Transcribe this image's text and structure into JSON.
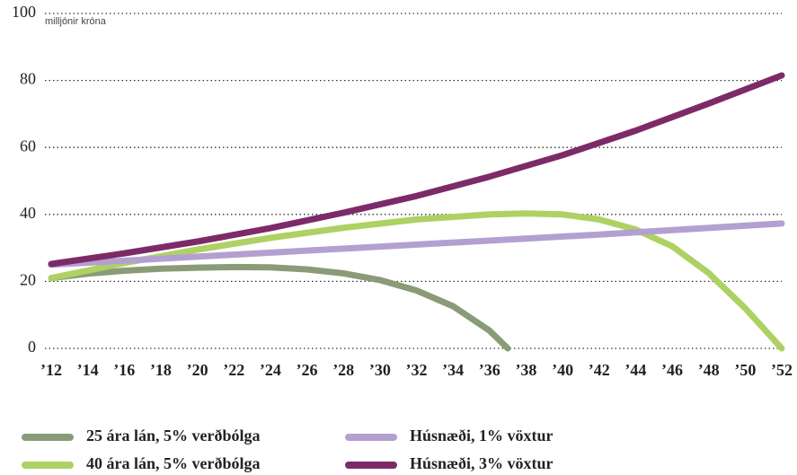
{
  "chart_data": {
    "type": "line",
    "y_label": "milljónir króna",
    "xlim": [
      12,
      52
    ],
    "xticks": [
      {
        "value": 12,
        "label": "’12"
      },
      {
        "value": 14,
        "label": "’14"
      },
      {
        "value": 16,
        "label": "’16"
      },
      {
        "value": 18,
        "label": "’18"
      },
      {
        "value": 20,
        "label": "’20"
      },
      {
        "value": 22,
        "label": "’22"
      },
      {
        "value": 24,
        "label": "’24"
      },
      {
        "value": 26,
        "label": "’26"
      },
      {
        "value": 28,
        "label": "’28"
      },
      {
        "value": 30,
        "label": "’30"
      },
      {
        "value": 32,
        "label": "’32"
      },
      {
        "value": 34,
        "label": "’34"
      },
      {
        "value": 36,
        "label": "’36"
      },
      {
        "value": 38,
        "label": "’38"
      },
      {
        "value": 40,
        "label": "’40"
      },
      {
        "value": 42,
        "label": "’42"
      },
      {
        "value": 44,
        "label": "’44"
      },
      {
        "value": 46,
        "label": "’46"
      },
      {
        "value": 48,
        "label": "’48"
      },
      {
        "value": 50,
        "label": "’50"
      },
      {
        "value": 52,
        "label": "’52"
      }
    ],
    "ylim": [
      0,
      100
    ],
    "yticks": [
      0,
      20,
      40,
      60,
      80,
      100
    ],
    "grid": true,
    "series": [
      {
        "name": "25 ára lán, 5% verðbólga",
        "color": "#8a9b78",
        "x": [
          12,
          14,
          16,
          18,
          20,
          22,
          24,
          26,
          28,
          30,
          32,
          34,
          36,
          37
        ],
        "values": [
          21,
          22.3,
          23.2,
          23.8,
          24.1,
          24.3,
          24.2,
          23.6,
          22.4,
          20.4,
          17.3,
          12.6,
          5.3,
          0
        ]
      },
      {
        "name": "40 ára lán, 5% verðbólga",
        "color": "#aed163",
        "x": [
          12,
          16,
          20,
          24,
          28,
          32,
          36,
          38,
          40,
          42,
          44,
          46,
          48,
          50,
          52
        ],
        "values": [
          21,
          25.5,
          29.5,
          33,
          36,
          38.5,
          40,
          40.3,
          40,
          38.5,
          35.5,
          30.5,
          22.5,
          12,
          0
        ]
      },
      {
        "name": "Húsnæði, 1% vöxtur",
        "color": "#b3a0d0",
        "x": [
          12,
          22,
          32,
          42,
          52
        ],
        "values": [
          25,
          28,
          31,
          34,
          37.3
        ]
      },
      {
        "name": "Húsnæði, 3% vöxtur",
        "color": "#7d2a69",
        "x": [
          12,
          16,
          20,
          24,
          28,
          32,
          36,
          40,
          44,
          48,
          52
        ],
        "values": [
          25.2,
          28.4,
          31.9,
          35.9,
          40.5,
          45.5,
          51.3,
          57.7,
          65,
          73.1,
          81.5
        ]
      }
    ]
  }
}
